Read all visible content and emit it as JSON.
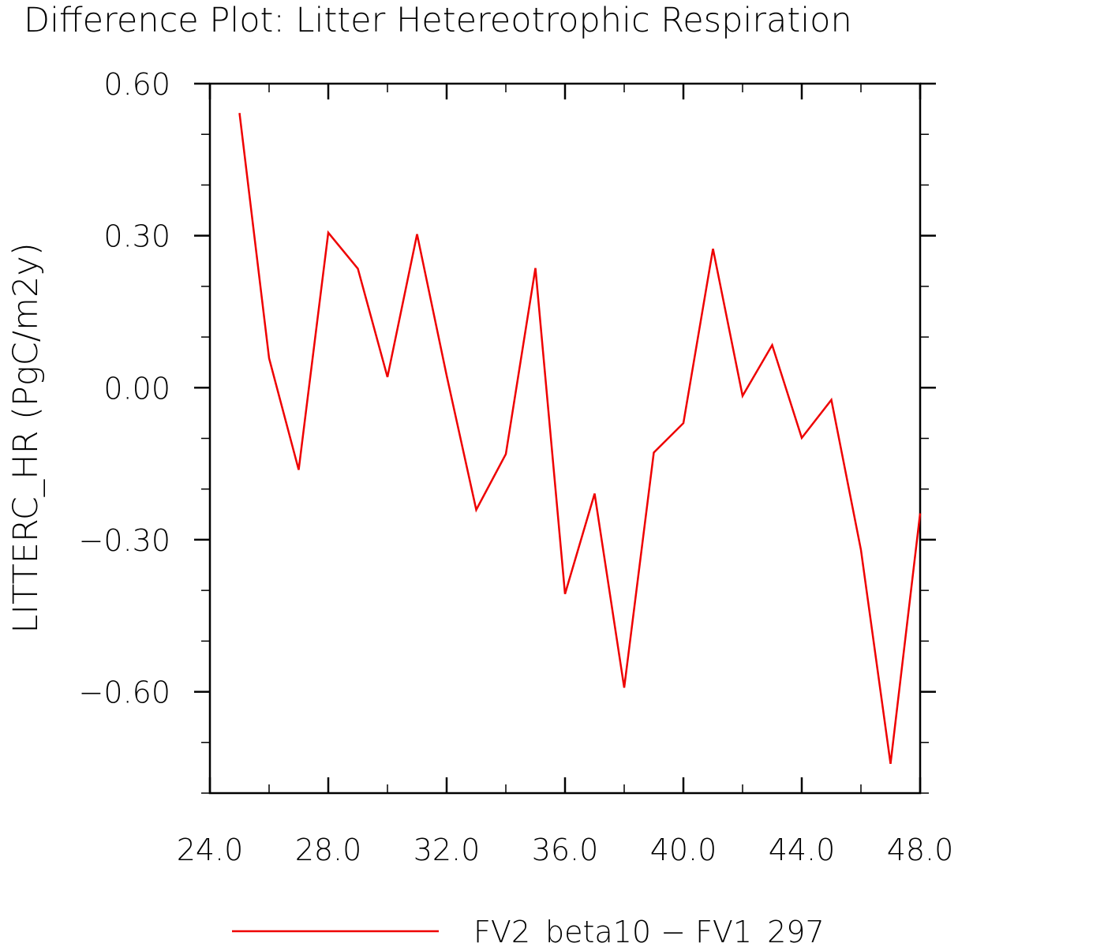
{
  "chart_data": {
    "type": "line",
    "title": "Difference Plot: Litter Hetereotrophic Respiration",
    "xlabel": "",
    "ylabel": "LITTERC_HR  (PgC/m2y)",
    "xlim": [
      24.0,
      48.0
    ],
    "ylim": [
      -0.8,
      0.6
    ],
    "x_ticks": [
      "24.0",
      "28.0",
      "32.0",
      "36.0",
      "40.0",
      "44.0",
      "48.0"
    ],
    "y_ticks": [
      "0.60",
      "0.30",
      "0.00",
      "−0.30",
      "−0.60"
    ],
    "x_tick_values": [
      24,
      28,
      32,
      36,
      40,
      44,
      48
    ],
    "y_tick_values": [
      0.6,
      0.3,
      0.0,
      -0.3,
      -0.6
    ],
    "y_minor_step": 0.1,
    "x_minor_step": 2,
    "grid": false,
    "legend_position": "bottom",
    "series": [
      {
        "name": "FV2_beta10 − FV1_297",
        "color": "#ee0000",
        "x": [
          25,
          26,
          27,
          28,
          29,
          30,
          31,
          32,
          33,
          34,
          35,
          36,
          37,
          38,
          39,
          40,
          41,
          42,
          43,
          44,
          45,
          46,
          47,
          48
        ],
        "y": [
          0.542,
          0.058,
          -0.162,
          0.306,
          0.235,
          0.021,
          0.303,
          0.024,
          -0.241,
          -0.131,
          0.236,
          -0.407,
          -0.209,
          -0.592,
          -0.128,
          -0.07,
          0.274,
          -0.016,
          0.084,
          -0.099,
          -0.024,
          -0.32,
          -0.742,
          -0.248
        ]
      }
    ]
  }
}
